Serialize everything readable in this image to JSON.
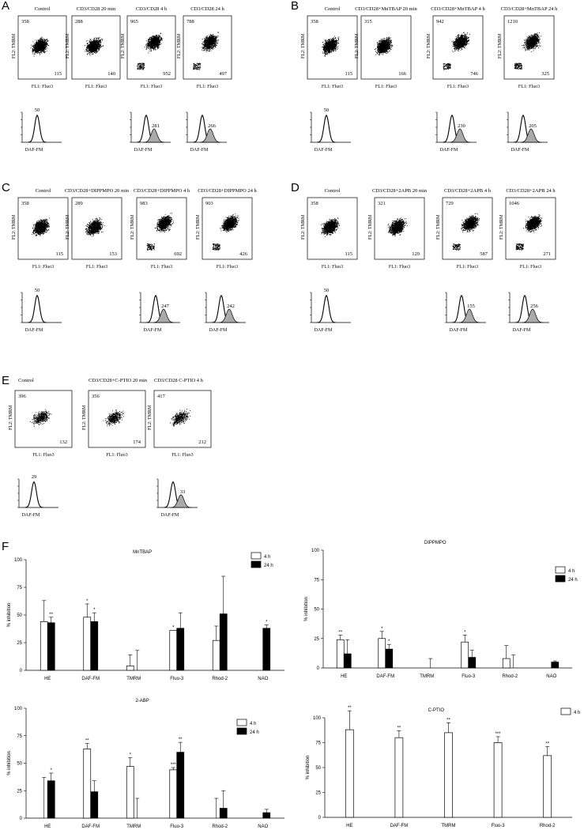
{
  "panels": {
    "A": {
      "letter": "A",
      "titles": [
        "Control",
        "CD3/CD28 20 min",
        "CD3/CD28 4 h",
        "CD3/CD28 24 h"
      ],
      "tl": [
        "358",
        "288",
        "965",
        "788"
      ],
      "br": [
        "115",
        "140",
        "952",
        "497"
      ],
      "hist_values": [
        "50",
        "281",
        "266"
      ]
    },
    "B": {
      "letter": "B",
      "titles": [
        "Control",
        "CD3/CD28+MnTBAP 20 min",
        "CD3/CD28+MnTBAP 4 h",
        "CD3/CD28+MnTBAP 24 h"
      ],
      "tl": [
        "358",
        "315",
        "942",
        "1210"
      ],
      "br": [
        "115",
        "166",
        "746",
        "325"
      ],
      "hist_values": [
        "50",
        "230",
        "205"
      ]
    },
    "C": {
      "letter": "C",
      "titles": [
        "Control",
        "CD3/CD28+DIPPMPO 20 min",
        "CD3/CD28+DIPPMPO 4 h",
        "CD3/CD28+DIPPMPO 24 h"
      ],
      "tl": [
        "358",
        "289",
        "983",
        "903"
      ],
      "br": [
        "115",
        "153",
        "692",
        "426"
      ],
      "hist_values": [
        "50",
        "247",
        "242"
      ]
    },
    "D": {
      "letter": "D",
      "titles": [
        "Control",
        "CD3/CD28+2APB 20 min",
        "CD3/CD28+2APB  4 h",
        "CD3/CD28+2APB  24 h"
      ],
      "tl": [
        "358",
        "321",
        "729",
        "1046"
      ],
      "br": [
        "115",
        "129",
        "587",
        "271"
      ],
      "hist_values": [
        "50",
        "155",
        "256"
      ]
    },
    "E": {
      "letter": "E",
      "titles": [
        "Control",
        "CD3/CD28+C-PTIO 20 min",
        "CD3/CD28 C-PTIO 4 h"
      ],
      "tl": [
        "396",
        "356",
        "417"
      ],
      "br": [
        "132",
        "174",
        "212"
      ],
      "hist_values": [
        "29",
        "33"
      ]
    },
    "F": {
      "letter": "F"
    }
  },
  "axis_labels": {
    "scatter_y": "FL2: TMRM",
    "scatter_x": "FL1: Fluo3",
    "hist_x": "DAF-FM"
  },
  "chart_data": [
    {
      "type": "bar",
      "title": "MnTBAP",
      "ylabel": "% inhibition",
      "ylim": [
        0,
        100
      ],
      "yticks": [
        "0",
        "25",
        "50",
        "75",
        "100"
      ],
      "categories": [
        "HE",
        "DAF-FM",
        "TMRM",
        "Fluo-3",
        "Rhod-2",
        "NAO"
      ],
      "series": [
        {
          "name": "4 h",
          "color": "#ffffff",
          "values": [
            44,
            48,
            4,
            36,
            27,
            0
          ],
          "errors": [
            19,
            12,
            10,
            0,
            13,
            0
          ],
          "stars": [
            "",
            "*",
            "",
            "*",
            "",
            ""
          ]
        },
        {
          "name": "24 h",
          "color": "#000000",
          "values": [
            43,
            44,
            0,
            38,
            51,
            38
          ],
          "errors": [
            5,
            8,
            18,
            14,
            34,
            3
          ],
          "stars": [
            "**",
            "*",
            "",
            "",
            "",
            "*"
          ]
        }
      ],
      "legend_position": "top-right"
    },
    {
      "type": "bar",
      "title": "DIPPMPO",
      "ylabel": "% inhibition",
      "ylim": [
        0,
        100
      ],
      "yticks": [
        "0",
        "25",
        "50",
        "75",
        "100"
      ],
      "categories": [
        "HE",
        "DAF-FM",
        "TMRM",
        "Fluo-3",
        "Rhod-2",
        "NAO"
      ],
      "series": [
        {
          "name": "4 h",
          "color": "#ffffff",
          "values": [
            24,
            25,
            0,
            22,
            8,
            0
          ],
          "errors": [
            4,
            6,
            0,
            6,
            11,
            0
          ],
          "stars": [
            "**",
            "*",
            "",
            "*",
            "",
            ""
          ]
        },
        {
          "name": "24 h",
          "color": "#000000",
          "values": [
            12,
            16,
            0,
            9,
            0,
            5
          ],
          "errors": [
            12,
            4,
            8,
            6,
            11,
            1
          ],
          "stars": [
            "",
            "*",
            "",
            "",
            "",
            ""
          ]
        }
      ],
      "legend_position": "right"
    },
    {
      "type": "bar",
      "title": "2-ABP",
      "ylabel": "% inhibition",
      "ylim": [
        0,
        100
      ],
      "yticks": [
        "0",
        "25",
        "50",
        "75",
        "100"
      ],
      "categories": [
        "HE",
        "DAF-FM",
        "TMRM",
        "Fluo-3",
        "Rhod-2",
        "NAO"
      ],
      "series": [
        {
          "name": "4 h",
          "color": "#ffffff",
          "values": [
            0,
            63,
            47,
            44,
            0,
            0
          ],
          "errors": [
            37,
            5,
            8,
            2,
            18,
            0
          ],
          "stars": [
            "",
            "**",
            "*",
            "***",
            "",
            ""
          ]
        },
        {
          "name": "24 h",
          "color": "#000000",
          "values": [
            34,
            24,
            0,
            60,
            9,
            5
          ],
          "errors": [
            7,
            10,
            18,
            9,
            16,
            3
          ],
          "stars": [
            "*",
            "",
            "",
            "**",
            "",
            ""
          ]
        }
      ],
      "legend_position": "top-right"
    },
    {
      "type": "bar",
      "title": "C-PTIO",
      "ylabel": "% inhibition",
      "ylim": [
        0,
        100
      ],
      "yticks": [
        "0",
        "25",
        "50",
        "75",
        "100"
      ],
      "categories": [
        "HE",
        "DAF-FM",
        "TMRM",
        "Fluo-3",
        "Rhod-2"
      ],
      "series": [
        {
          "name": "4 h",
          "color": "#ffffff",
          "values": [
            88,
            80,
            85,
            75,
            62
          ],
          "errors": [
            19,
            7,
            10,
            6,
            9
          ],
          "stars": [
            "**",
            "**",
            "**",
            "***",
            "**"
          ]
        }
      ],
      "legend_position": "top-right"
    }
  ]
}
